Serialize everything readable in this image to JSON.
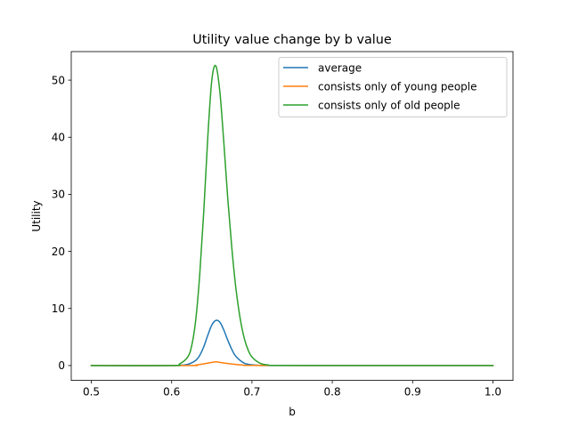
{
  "chart_data": {
    "type": "line",
    "title": "Utility value change by b value",
    "xlabel": "b",
    "ylabel": "Utility",
    "xlim": [
      0.475,
      1.025
    ],
    "ylim": [
      -2.6,
      55.0
    ],
    "xticks": [
      0.5,
      0.6,
      0.7,
      0.8,
      0.9,
      1.0
    ],
    "xtick_labels": [
      "0.5",
      "0.6",
      "0.7",
      "0.8",
      "0.9",
      "1.0"
    ],
    "yticks": [
      0,
      10,
      20,
      30,
      40,
      50
    ],
    "ytick_labels": [
      "0",
      "10",
      "20",
      "30",
      "40",
      "50"
    ],
    "grid": false,
    "legend_position": "top-right",
    "series": [
      {
        "name": "average",
        "color": "#1f77b4",
        "x": [
          0.5,
          0.6,
          0.61,
          0.62,
          0.63,
          0.635,
          0.64,
          0.645,
          0.65,
          0.655,
          0.66,
          0.665,
          0.67,
          0.675,
          0.68,
          0.69,
          0.7,
          0.71,
          0.72,
          0.8,
          0.9,
          1.0
        ],
        "y": [
          0,
          0,
          0.05,
          0.2,
          0.9,
          1.8,
          3.3,
          5.3,
          7.1,
          7.9,
          7.6,
          6.2,
          4.4,
          2.8,
          1.6,
          0.45,
          0.12,
          0.03,
          0,
          0,
          0,
          0
        ]
      },
      {
        "name": "consists only of young people",
        "color": "#ff7f0e",
        "x": [
          0.5,
          0.62,
          0.63,
          0.64,
          0.65,
          0.655,
          0.66,
          0.67,
          0.68,
          0.69,
          0.7,
          0.8,
          0.9,
          1.0
        ],
        "y": [
          0,
          0,
          0.08,
          0.3,
          0.55,
          0.65,
          0.55,
          0.35,
          0.18,
          0.07,
          0.02,
          0,
          0,
          0
        ]
      },
      {
        "name": "consists only of old people",
        "color": "#2ca02c",
        "x": [
          0.5,
          0.6,
          0.61,
          0.62,
          0.625,
          0.63,
          0.635,
          0.64,
          0.645,
          0.65,
          0.655,
          0.66,
          0.665,
          0.67,
          0.675,
          0.68,
          0.685,
          0.69,
          0.695,
          0.7,
          0.71,
          0.72,
          0.73,
          0.8,
          0.9,
          1.0
        ],
        "y": [
          0,
          0,
          0.3,
          1.5,
          3.5,
          8.0,
          16.0,
          27.0,
          40.0,
          50.0,
          52.5,
          48.0,
          39.0,
          29.0,
          20.5,
          13.5,
          8.5,
          5.0,
          2.8,
          1.5,
          0.4,
          0.1,
          0.02,
          0,
          0,
          0
        ]
      }
    ]
  }
}
